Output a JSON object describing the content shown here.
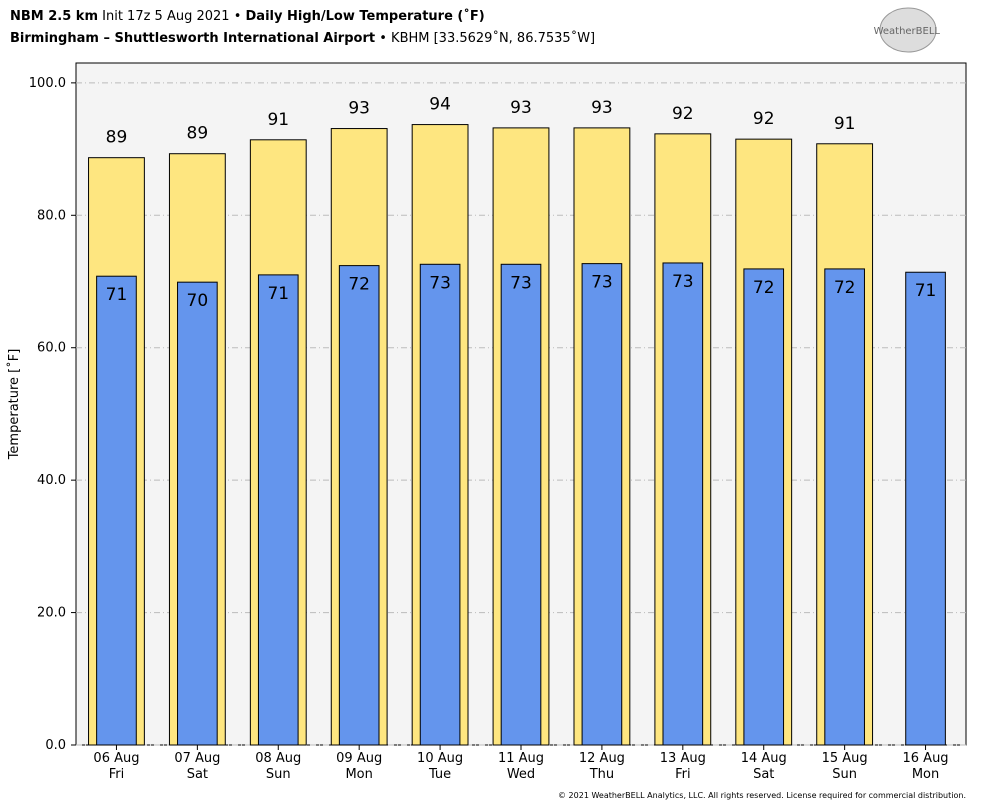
{
  "chart_data": {
    "type": "bar",
    "title": {
      "model": "NBM 2.5 km",
      "init": "Init 17z 5 Aug 2021",
      "separator": "•",
      "product": "Daily High/Low Temperature (˚F)",
      "station": "Birmingham – Shuttlesworth International Airport",
      "station_info": "KBHM [33.5629˚N, 86.7535˚W]"
    },
    "logo": "WeatherBELL",
    "footnote": "© 2021 WeatherBELL Analytics, LLC. All rights reserved. License required for commercial distribution.",
    "y_label": "Temperature [˚F]",
    "categories": [
      [
        "06 Aug",
        "Fri"
      ],
      [
        "07 Aug",
        "Sat"
      ],
      [
        "08 Aug",
        "Sun"
      ],
      [
        "09 Aug",
        "Mon"
      ],
      [
        "10 Aug",
        "Tue"
      ],
      [
        "11 Aug",
        "Wed"
      ],
      [
        "12 Aug",
        "Thu"
      ],
      [
        "13 Aug",
        "Fri"
      ],
      [
        "14 Aug",
        "Sat"
      ],
      [
        "15 Aug",
        "Sun"
      ],
      [
        "16 Aug",
        "Mon"
      ]
    ],
    "series": [
      {
        "color": "#fee680",
        "values": [
          88.7,
          89.3,
          91.4,
          93.1,
          93.7,
          93.2,
          93.2,
          92.3,
          91.5,
          90.8,
          null
        ],
        "value_labels": [
          "89",
          "89",
          "91",
          "93",
          "94",
          "93",
          "93",
          "92",
          "92",
          "91",
          null
        ]
      },
      {
        "color": "#6495ed",
        "values": [
          70.8,
          69.9,
          71.0,
          72.4,
          72.6,
          72.6,
          72.7,
          72.8,
          71.9,
          71.9,
          71.4
        ],
        "value_labels": [
          "71",
          "70",
          "71",
          "72",
          "73",
          "73",
          "73",
          "73",
          "72",
          "72",
          "71"
        ]
      }
    ],
    "ylim": [
      0,
      103
    ],
    "yticks": [
      {
        "value": 0,
        "label": "0.0"
      },
      {
        "value": 20,
        "label": "20.0"
      },
      {
        "value": 40,
        "label": "40.0"
      },
      {
        "value": 60,
        "label": "60.0"
      },
      {
        "value": 80,
        "label": "80.0"
      },
      {
        "value": 100,
        "label": "100.0"
      }
    ],
    "grid": true
  }
}
